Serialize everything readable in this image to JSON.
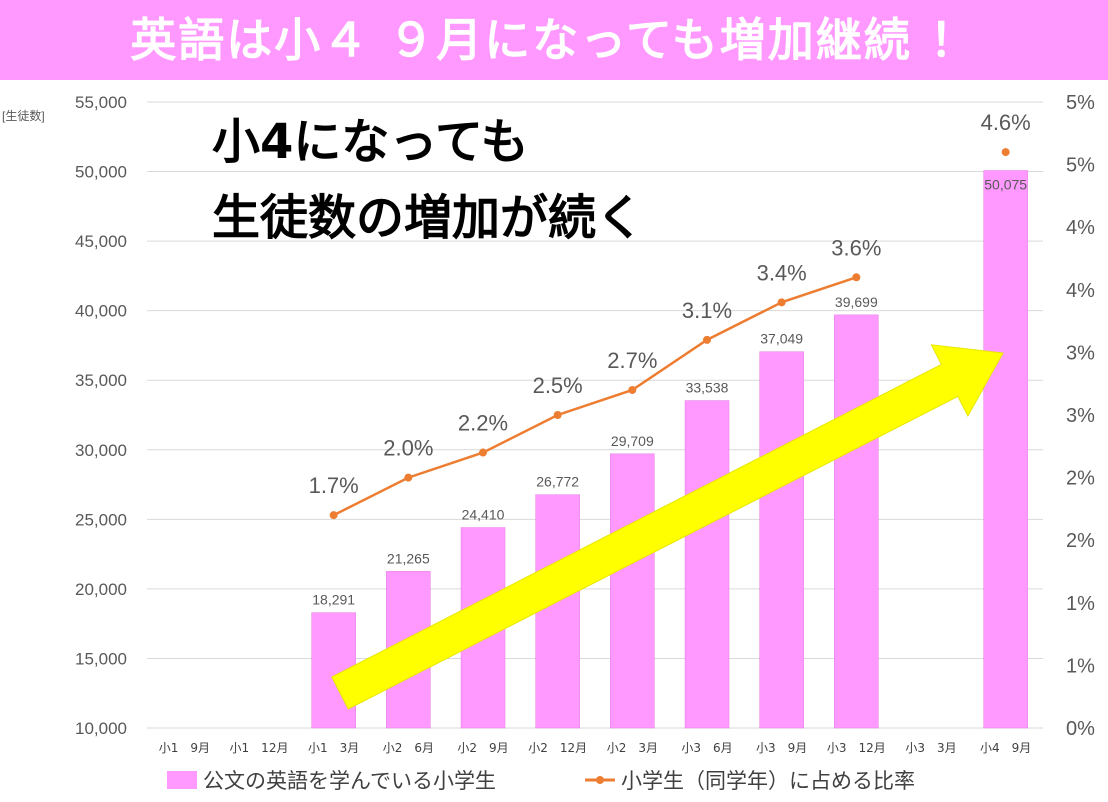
{
  "banner": {
    "title": "英語は小４ ９月になっても増加継続 ！"
  },
  "chart_data": {
    "type": "bar+line",
    "categories": [
      "小1　9月",
      "小1　12月",
      "小1　3月",
      "小2　6月",
      "小2　9月",
      "小2　12月",
      "小2　3月",
      "小3　6月",
      "小3　9月",
      "小3　12月",
      "小3　3月",
      "小4　9月"
    ],
    "series": [
      {
        "name": "公文の英語を学んでいる小学生",
        "type": "bar",
        "axis": "left",
        "values": [
          null,
          null,
          18291,
          21265,
          24410,
          26772,
          29709,
          33538,
          37049,
          39699,
          null,
          50075
        ],
        "labels": [
          "",
          "",
          "18,291",
          "21,265",
          "24,410",
          "26,772",
          "29,709",
          "33,538",
          "37,049",
          "39,699",
          "",
          "50,075"
        ],
        "color": "#ff99ff"
      },
      {
        "name": "小学生（同学年）に占める比率",
        "type": "line",
        "axis": "right",
        "values": [
          null,
          null,
          1.7,
          2.0,
          2.2,
          2.5,
          2.7,
          3.1,
          3.4,
          3.6,
          null,
          4.6
        ],
        "labels": [
          "",
          "",
          "1.7%",
          "2.0%",
          "2.2%",
          "2.5%",
          "2.7%",
          "3.1%",
          "3.4%",
          "3.6%",
          "",
          "4.6%"
        ],
        "color": "#ed7d31"
      }
    ],
    "ylabel": "[生徒数]",
    "ylim": [
      10000,
      55000
    ],
    "y_ticks": [
      10000,
      15000,
      20000,
      25000,
      30000,
      35000,
      40000,
      45000,
      50000,
      55000
    ],
    "y_tick_labels": [
      "10,000",
      "15,000",
      "20,000",
      "25,000",
      "30,000",
      "35,000",
      "40,000",
      "45,000",
      "50,000",
      "55,000"
    ],
    "y2lim": [
      0,
      5
    ],
    "y2_tick_labels": [
      "0%",
      "1%",
      "1%",
      "2%",
      "2%",
      "3%",
      "3%",
      "4%",
      "4%",
      "5%",
      "5%"
    ],
    "grid": true,
    "legend": "bottom",
    "annotation": {
      "line1": "小4になっても",
      "line2": "生徒数の増加が続く"
    },
    "arrow_color": "#ffff00"
  }
}
